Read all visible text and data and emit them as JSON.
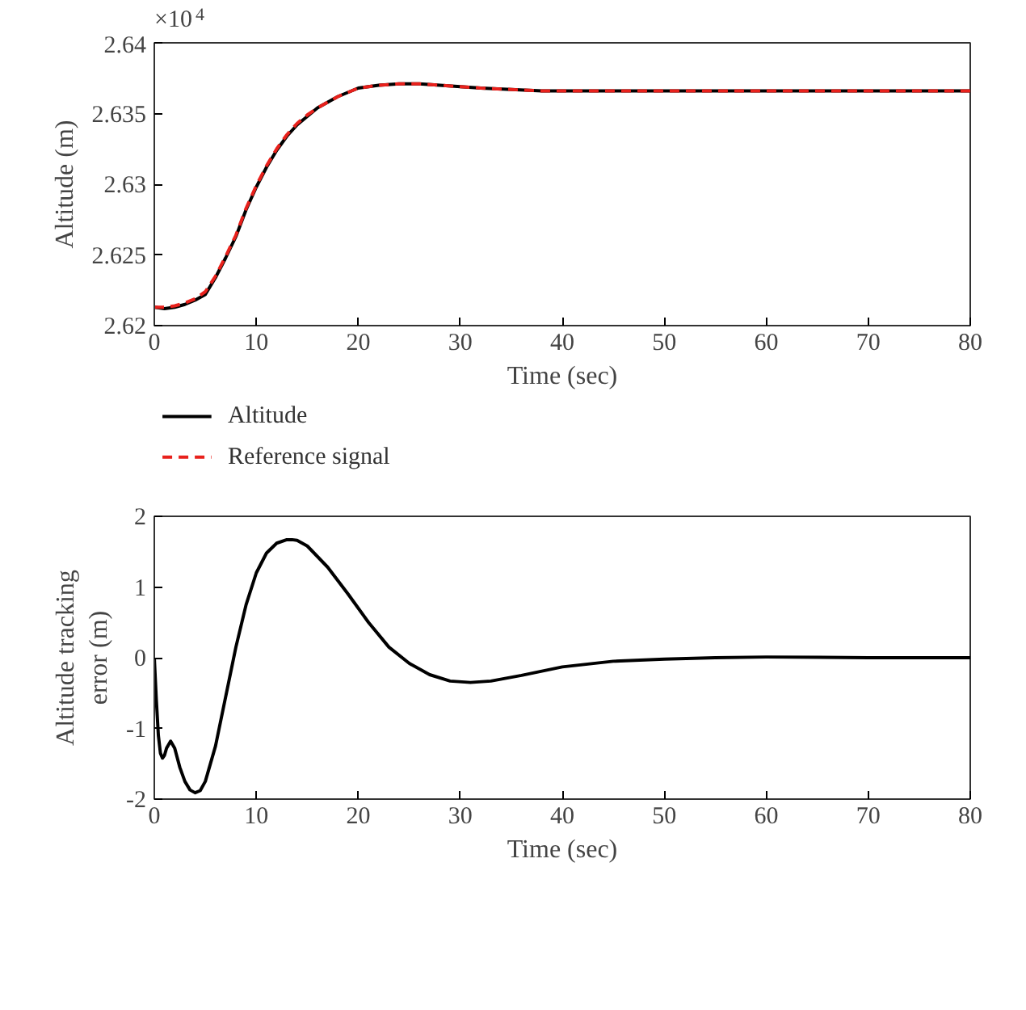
{
  "chart_data": [
    {
      "type": "line",
      "xlabel": "Time (sec)",
      "ylabel": "Altitude (m)",
      "annotations": [
        "×10$^{4}$"
      ],
      "xlim": [
        0,
        80
      ],
      "xticks": [
        0,
        10,
        20,
        30,
        40,
        50,
        60,
        70,
        80
      ],
      "ylim": [
        2.62,
        2.64
      ],
      "yticks": [
        2.62,
        2.625,
        2.63,
        2.635,
        2.64
      ],
      "grid": false,
      "legend": "bottom left",
      "series": [
        {
          "name": "Altitude",
          "color": "#000000",
          "line_style": "solid",
          "x": [
            0,
            1,
            2,
            3,
            4,
            5,
            6,
            7,
            8,
            9,
            10,
            11,
            12,
            13,
            14,
            15,
            16,
            17,
            18,
            19,
            20,
            22,
            24,
            26,
            28,
            30,
            32,
            35,
            38,
            40,
            45,
            50,
            60,
            70,
            80
          ],
          "values": [
            2.6213,
            2.6212,
            2.6213,
            2.6215,
            2.6218,
            2.6222,
            2.6234,
            2.6248,
            2.6263,
            2.6282,
            2.6298,
            2.6312,
            2.6324,
            2.6334,
            2.6342,
            2.6348,
            2.6354,
            2.6358,
            2.6362,
            2.6365,
            2.6368,
            2.637,
            2.6371,
            2.6371,
            2.637,
            2.6369,
            2.6368,
            2.6367,
            2.6366,
            2.6366,
            2.6366,
            2.6366,
            2.6366,
            2.6366,
            2.6366
          ]
        },
        {
          "name": "Reference signal",
          "color": "#e8211c",
          "line_style": "dashed",
          "x": [
            0,
            1,
            2,
            3,
            4,
            5,
            6,
            7,
            8,
            9,
            10,
            11,
            12,
            13,
            14,
            15,
            16,
            17,
            18,
            19,
            20,
            22,
            24,
            26,
            28,
            30,
            32,
            35,
            38,
            40,
            45,
            50,
            60,
            70,
            80
          ],
          "values": [
            2.6213,
            2.6213,
            2.6214,
            2.6216,
            2.6219,
            2.6224,
            2.6235,
            2.6249,
            2.6264,
            2.6283,
            2.6299,
            2.6313,
            2.6325,
            2.6335,
            2.6343,
            2.6349,
            2.6354,
            2.6358,
            2.6362,
            2.6365,
            2.6368,
            2.637,
            2.6371,
            2.6371,
            2.637,
            2.6369,
            2.6368,
            2.6367,
            2.6366,
            2.6366,
            2.6366,
            2.6366,
            2.6366,
            2.6366,
            2.6366
          ]
        }
      ]
    },
    {
      "type": "line",
      "xlabel": "Time (sec)",
      "ylabel": "Altitude tracking error (m)",
      "xlim": [
        0,
        80
      ],
      "xticks": [
        0,
        10,
        20,
        30,
        40,
        50,
        60,
        70,
        80
      ],
      "ylim": [
        -2,
        2
      ],
      "yticks": [
        -2,
        -1,
        0,
        1,
        2
      ],
      "grid": false,
      "legend": false,
      "series": [
        {
          "color": "#000000",
          "line_style": "solid",
          "x": [
            0,
            0.2,
            0.4,
            0.6,
            0.8,
            1.0,
            1.2,
            1.6,
            2,
            2.5,
            3,
            3.5,
            4,
            4.5,
            5,
            6,
            7,
            8,
            9,
            10,
            11,
            12,
            13,
            13.5,
            14,
            15,
            17,
            19,
            21,
            23,
            25,
            27,
            29,
            31,
            33,
            36,
            40,
            45,
            50,
            55,
            60,
            70,
            80
          ],
          "values": [
            0,
            -0.6,
            -1.1,
            -1.35,
            -1.42,
            -1.38,
            -1.28,
            -1.18,
            -1.28,
            -1.55,
            -1.75,
            -1.87,
            -1.91,
            -1.88,
            -1.75,
            -1.25,
            -0.55,
            0.15,
            0.75,
            1.2,
            1.48,
            1.62,
            1.67,
            1.67,
            1.66,
            1.58,
            1.28,
            0.9,
            0.5,
            0.15,
            -0.08,
            -0.24,
            -0.33,
            -0.35,
            -0.33,
            -0.25,
            -0.13,
            -0.05,
            -0.02,
            0,
            0.01,
            0,
            0
          ]
        }
      ]
    }
  ]
}
